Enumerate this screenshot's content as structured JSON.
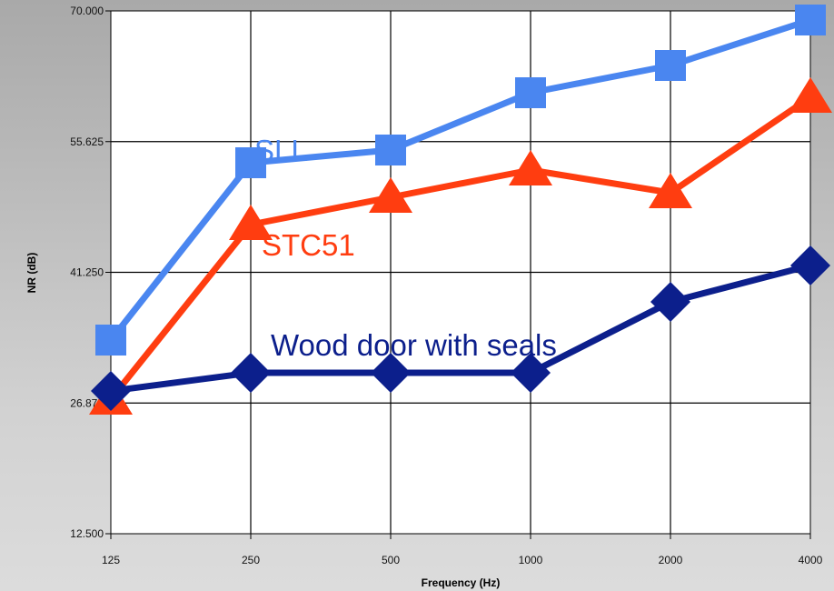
{
  "chart_data": {
    "type": "line",
    "title": "",
    "xlabel": "Frequency (Hz)",
    "ylabel": "NR (dB)",
    "categories": [
      "125",
      "250",
      "500",
      "1000",
      "2000",
      "4000"
    ],
    "ylim": [
      12.5,
      70.0
    ],
    "yticks": [
      "12.500",
      "26.875",
      "41.250",
      "55.625",
      "70.000"
    ],
    "grid": true,
    "series": [
      {
        "name": "SLL",
        "values": [
          33.8,
          53.3,
          54.7,
          61.0,
          64.0,
          69.0
        ],
        "color": "#4a86f0",
        "marker": "square"
      },
      {
        "name": "STC51",
        "values": [
          27.3,
          46.5,
          49.5,
          52.5,
          50.0,
          60.5
        ],
        "color": "#ff3d10",
        "marker": "triangle"
      },
      {
        "name": "Wood door with seals",
        "values": [
          28.2,
          30.2,
          30.2,
          30.2,
          38.0,
          42.0
        ],
        "color": "#0c1f8c",
        "marker": "diamond"
      }
    ]
  }
}
